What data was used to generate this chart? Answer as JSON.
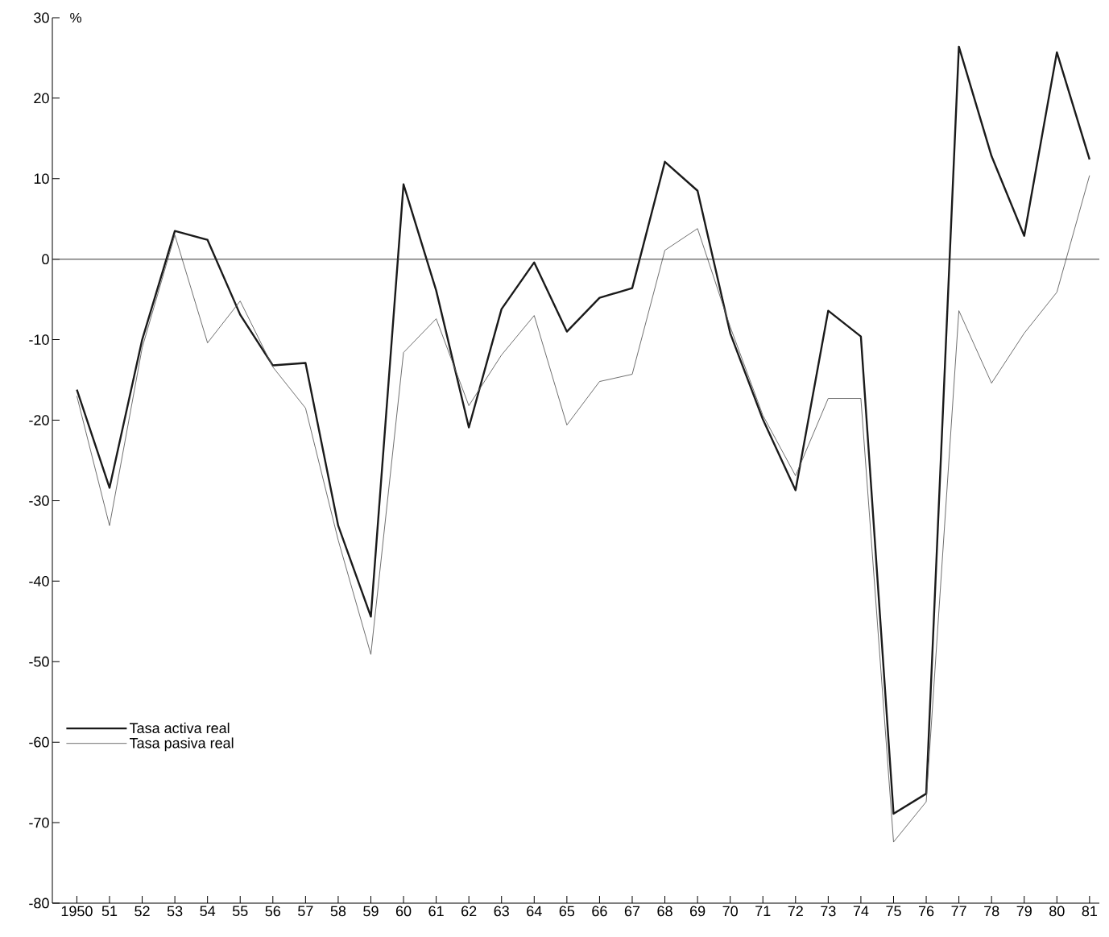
{
  "chart_data": {
    "type": "line",
    "ylabel": "%",
    "x": [
      1950,
      1951,
      1952,
      1953,
      1954,
      1955,
      1956,
      1957,
      1958,
      1959,
      1960,
      1961,
      1962,
      1963,
      1964,
      1965,
      1966,
      1967,
      1968,
      1969,
      1970,
      1971,
      1972,
      1973,
      1974,
      1975,
      1976,
      1977,
      1978,
      1979,
      1980,
      1981
    ],
    "series": [
      {
        "name": "Tasa activa real",
        "color": "#1a1a1a",
        "values": [
          -16.2,
          -28.4,
          -10,
          3.5,
          2.4,
          -6.9,
          -13.2,
          -12.9,
          -33.1,
          -44.4,
          9.3,
          -3.9,
          -20.9,
          -6.2,
          -0.4,
          -9,
          -4.8,
          -3.6,
          12.1,
          8.5,
          -9.2,
          -19.9,
          -28.7,
          -6.4,
          -9.6,
          -68.9,
          -66.4,
          26.4,
          12.8,
          2.9,
          25.7,
          12.4
        ]
      },
      {
        "name": "Tasa pasiva real",
        "color": "#606060",
        "values": [
          -17,
          -33.1,
          -11,
          3,
          -10.4,
          -5.2,
          -13.4,
          -18.5,
          -34.9,
          -49.1,
          -11.6,
          -7.4,
          -18.2,
          -11.9,
          -7,
          -20.6,
          -15.2,
          -14.3,
          1.1,
          3.8,
          -8.4,
          -19.4,
          -26.9,
          -17.3,
          -17.3,
          -72.4,
          -67.4,
          -6.4,
          -15.4,
          -9.2,
          -4.1,
          10.4
        ]
      }
    ],
    "xlim": [
      1949.25,
      1981.3
    ],
    "ylim": [
      -80,
      30
    ],
    "xticks": [
      1950,
      {
        "value": 1951,
        "label": "51"
      },
      {
        "value": 1952,
        "label": "52"
      },
      {
        "value": 1953,
        "label": "53"
      },
      {
        "value": 1954,
        "label": "54"
      },
      {
        "value": 1955,
        "label": "55"
      },
      {
        "value": 1956,
        "label": "56"
      },
      {
        "value": 1957,
        "label": "57"
      },
      {
        "value": 1958,
        "label": "58"
      },
      {
        "value": 1959,
        "label": "59"
      },
      {
        "value": 1960,
        "label": "60"
      },
      {
        "value": 1961,
        "label": "61"
      },
      {
        "value": 1962,
        "label": "62"
      },
      {
        "value": 1963,
        "label": "63"
      },
      {
        "value": 1964,
        "label": "64"
      },
      {
        "value": 1965,
        "label": "65"
      },
      {
        "value": 1966,
        "label": "66"
      },
      {
        "value": 1967,
        "label": "67"
      },
      {
        "value": 1968,
        "label": "68"
      },
      {
        "value": 1969,
        "label": "69"
      },
      {
        "value": 1970,
        "label": "70"
      },
      {
        "value": 1971,
        "label": "71"
      },
      {
        "value": 1972,
        "label": "72"
      },
      {
        "value": 1973,
        "label": "73"
      },
      {
        "value": 1974,
        "label": "74"
      },
      {
        "value": 1975,
        "label": "75"
      },
      {
        "value": 1976,
        "label": "76"
      },
      {
        "value": 1977,
        "label": "77"
      },
      {
        "value": 1978,
        "label": "78"
      },
      {
        "value": 1979,
        "label": "79"
      },
      {
        "value": 1980,
        "label": "80"
      },
      {
        "value": 1981,
        "label": "81"
      }
    ],
    "yticks": [
      -80,
      -70,
      -60,
      -50,
      -40,
      -30,
      -20,
      -10,
      0,
      10,
      20,
      30
    ],
    "ref_lines": [
      {
        "axis": "y",
        "value": 0,
        "color": "#333333"
      }
    ],
    "legend": "bottom left",
    "grid": false,
    "marker": "none",
    "line_style": "solid"
  }
}
